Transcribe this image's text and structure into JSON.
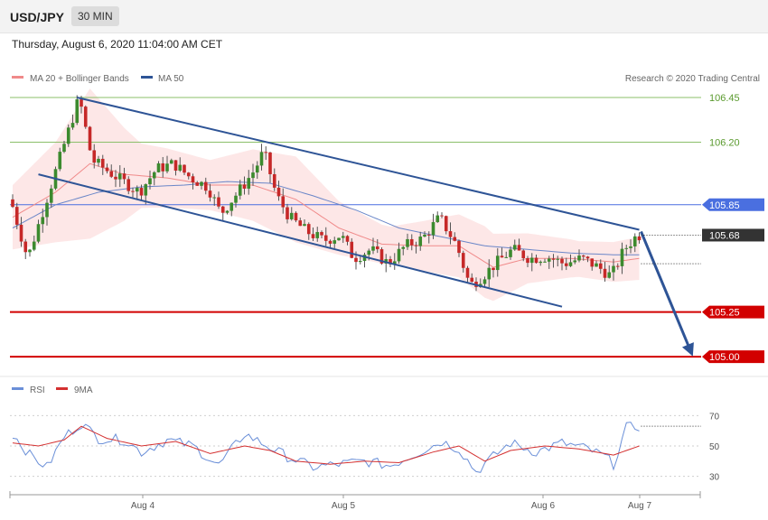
{
  "header": {
    "symbol": "USD/JPY",
    "timeframe": "30 MIN",
    "datetime": "Thursday, August 6, 2020 11:04:00 AM CET"
  },
  "legend": {
    "ma20_bb": "MA 20 + Bollinger Bands",
    "ma50": "MA 50",
    "credit": "Research © 2020 Trading Central",
    "rsi": "RSI",
    "rsi_ma": "9MA"
  },
  "colors": {
    "candle_up": "#3c8a2e",
    "candle_down": "#c62828",
    "ma20": "#f08a8a",
    "ma50": "#6a86c8",
    "band_fill": "#fde3e3",
    "channel": "#2e5496",
    "resistance_green": "#8bbf6a",
    "pivot_blue": "#4a6fe0",
    "support_red": "#d20000",
    "current_price_bg": "#333333",
    "rsi_line": "#6a8fd8",
    "rsi_ma_line": "#d43030"
  },
  "chart_data": [
    {
      "type": "candlestick",
      "instrument": "USD/JPY",
      "timeframe": "30 MIN",
      "x_tick_labels": [
        "Aug 4",
        "Aug 5",
        "Aug 6",
        "Aug 7"
      ],
      "ylim": [
        104.95,
        106.5
      ],
      "current_price": "105.68",
      "levels": [
        {
          "value": 106.45,
          "label": "106.45",
          "style": "resistance"
        },
        {
          "value": 106.2,
          "label": "106.20",
          "style": "resistance"
        },
        {
          "value": 105.85,
          "label": "105.85",
          "style": "pivot"
        },
        {
          "value": 105.25,
          "label": "105.25",
          "style": "support"
        },
        {
          "value": 105.0,
          "label": "105.00",
          "style": "support"
        }
      ],
      "keypoints": [
        [
          0,
          105.88
        ],
        [
          4,
          105.55
        ],
        [
          10,
          106.0
        ],
        [
          16,
          106.45
        ],
        [
          19,
          106.1
        ],
        [
          25,
          106.0
        ],
        [
          30,
          105.92
        ],
        [
          34,
          106.05
        ],
        [
          38,
          106.08
        ],
        [
          42,
          106.0
        ],
        [
          46,
          105.95
        ],
        [
          49,
          105.8
        ],
        [
          54,
          105.95
        ],
        [
          57,
          106.05
        ],
        [
          59,
          106.15
        ],
        [
          62,
          105.9
        ],
        [
          65,
          105.78
        ],
        [
          69,
          105.7
        ],
        [
          73,
          105.65
        ],
        [
          77,
          105.68
        ],
        [
          80,
          105.55
        ],
        [
          84,
          105.6
        ],
        [
          88,
          105.52
        ],
        [
          92,
          105.62
        ],
        [
          96,
          105.66
        ],
        [
          100,
          105.78
        ],
        [
          104,
          105.62
        ],
        [
          107,
          105.4
        ],
        [
          110,
          105.45
        ],
        [
          113,
          105.52
        ],
        [
          117,
          105.6
        ],
        [
          121,
          105.55
        ],
        [
          125,
          105.56
        ],
        [
          129,
          105.52
        ],
        [
          133,
          105.55
        ],
        [
          137,
          105.5
        ],
        [
          140,
          105.45
        ],
        [
          143,
          105.6
        ],
        [
          146,
          105.68
        ]
      ],
      "ma20_keypoints": [
        [
          0,
          105.78
        ],
        [
          10,
          105.92
        ],
        [
          18,
          106.08
        ],
        [
          26,
          106.02
        ],
        [
          36,
          106.0
        ],
        [
          46,
          105.96
        ],
        [
          56,
          105.96
        ],
        [
          66,
          105.88
        ],
        [
          76,
          105.72
        ],
        [
          86,
          105.63
        ],
        [
          96,
          105.62
        ],
        [
          104,
          105.62
        ],
        [
          112,
          105.5
        ],
        [
          120,
          105.55
        ],
        [
          130,
          105.55
        ],
        [
          140,
          105.53
        ],
        [
          146,
          105.55
        ]
      ],
      "ma50_keypoints": [
        [
          0,
          105.72
        ],
        [
          10,
          105.85
        ],
        [
          20,
          105.92
        ],
        [
          30,
          105.95
        ],
        [
          40,
          105.96
        ],
        [
          50,
          105.98
        ],
        [
          60,
          105.97
        ],
        [
          70,
          105.9
        ],
        [
          80,
          105.82
        ],
        [
          90,
          105.72
        ],
        [
          100,
          105.67
        ],
        [
          110,
          105.62
        ],
        [
          120,
          105.6
        ],
        [
          130,
          105.58
        ],
        [
          140,
          105.57
        ],
        [
          146,
          105.57
        ]
      ],
      "band_width_keypoints": [
        [
          0,
          0.18
        ],
        [
          10,
          0.28
        ],
        [
          18,
          0.42
        ],
        [
          30,
          0.18
        ],
        [
          46,
          0.14
        ],
        [
          56,
          0.2
        ],
        [
          66,
          0.24
        ],
        [
          76,
          0.15
        ],
        [
          88,
          0.1
        ],
        [
          100,
          0.16
        ],
        [
          110,
          0.2
        ],
        [
          120,
          0.14
        ],
        [
          132,
          0.1
        ],
        [
          146,
          0.12
        ]
      ],
      "channel_lines": [
        {
          "from": [
            15,
            106.45
          ],
          "to": [
            146,
            105.71
          ]
        },
        {
          "from": [
            6,
            106.02
          ],
          "to": [
            128,
            105.28
          ]
        }
      ],
      "forecast_arrow": {
        "from": [
          146,
          105.7
        ],
        "to": [
          158,
          105.03
        ]
      }
    },
    {
      "type": "line",
      "title": "RSI",
      "ylim": [
        20,
        80
      ],
      "y_ticks": [
        70,
        50,
        30
      ],
      "series": [
        {
          "name": "RSI",
          "keypoints": [
            [
              0,
              58
            ],
            [
              4,
              44
            ],
            [
              8,
              36
            ],
            [
              12,
              56
            ],
            [
              16,
              65
            ],
            [
              20,
              55
            ],
            [
              26,
              54
            ],
            [
              30,
              46
            ],
            [
              36,
              54
            ],
            [
              42,
              50
            ],
            [
              48,
              37
            ],
            [
              54,
              58
            ],
            [
              58,
              52
            ],
            [
              64,
              43
            ],
            [
              70,
              36
            ],
            [
              76,
              38
            ],
            [
              82,
              40
            ],
            [
              88,
              37
            ],
            [
              94,
              45
            ],
            [
              100,
              53
            ],
            [
              104,
              48
            ],
            [
              108,
              33
            ],
            [
              112,
              43
            ],
            [
              116,
              52
            ],
            [
              122,
              46
            ],
            [
              128,
              52
            ],
            [
              134,
              48
            ],
            [
              138,
              43
            ],
            [
              140,
              38
            ],
            [
              143,
              62
            ],
            [
              146,
              63
            ]
          ]
        },
        {
          "name": "9MA",
          "keypoints": [
            [
              0,
              52
            ],
            [
              6,
              50
            ],
            [
              12,
              54
            ],
            [
              16,
              63
            ],
            [
              22,
              55
            ],
            [
              30,
              50
            ],
            [
              38,
              53
            ],
            [
              46,
              45
            ],
            [
              54,
              50
            ],
            [
              60,
              47
            ],
            [
              66,
              40
            ],
            [
              74,
              38
            ],
            [
              82,
              40
            ],
            [
              90,
              39
            ],
            [
              98,
              46
            ],
            [
              104,
              50
            ],
            [
              110,
              40
            ],
            [
              116,
              47
            ],
            [
              124,
              50
            ],
            [
              132,
              48
            ],
            [
              140,
              44
            ],
            [
              146,
              50
            ]
          ]
        }
      ]
    }
  ]
}
